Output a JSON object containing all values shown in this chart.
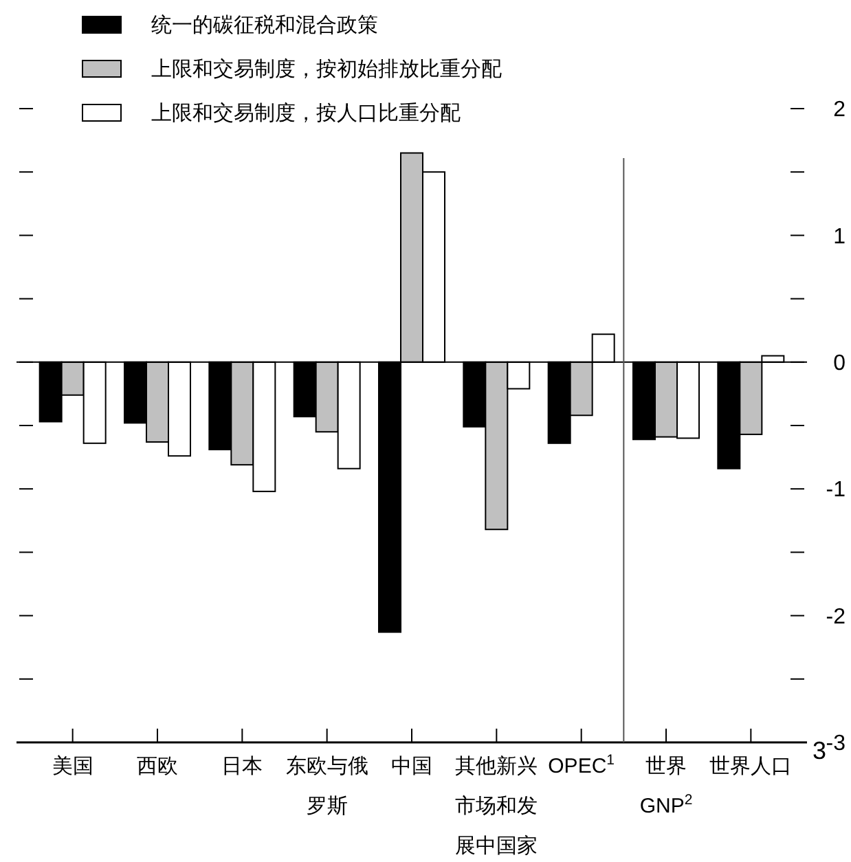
{
  "chart_data": {
    "type": "bar",
    "categories": [
      "美国",
      "西欧",
      "日本",
      "东欧与俄罗斯",
      "中国",
      "其他新兴市场和发展中国家",
      "OPEC$^{1}$",
      "世界GNP$^{2}$",
      "世界人口"
    ],
    "ref_lines": [
      {
        "axis": "x",
        "value": "世界GNP$^{2}$",
        "color": "#555555"
      }
    ],
    "series": [
      {
        "name": "统一的碳征税和混合政策",
        "color": "#000000",
        "values": [
          -0.47,
          -0.48,
          -0.69,
          -0.43,
          -2.13,
          -0.51,
          -0.64,
          -0.61,
          -0.84
        ]
      },
      {
        "name": "上限和交易制度，按初始排放比重分配",
        "color": "#c0c0c0",
        "values": [
          -0.26,
          -0.63,
          -0.81,
          -0.55,
          1.65,
          -1.32,
          -0.42,
          -0.59,
          -0.57
        ]
      },
      {
        "name": "上限和交易制度，按人口比重分配",
        "color": "#ffffff",
        "values": [
          -0.64,
          -0.74,
          -1.02,
          -0.84,
          1.5,
          -0.21,
          0.22,
          -0.6,
          0.05
        ]
      }
    ],
    "ylim": [
      -3,
      2
    ],
    "yticks": [
      {
        "value": -3,
        "label": "-3"
      },
      {
        "value": -2.5,
        "label": null
      },
      -2,
      {
        "value": -1.5,
        "label": null
      },
      -1,
      {
        "value": -0.5,
        "label": null
      },
      0,
      {
        "value": 0.5,
        "label": null
      },
      1,
      {
        "value": 1.5,
        "label": null
      },
      2
    ],
    "annotations": [
      "3"
    ],
    "legend": "top left",
    "grid": false
  }
}
